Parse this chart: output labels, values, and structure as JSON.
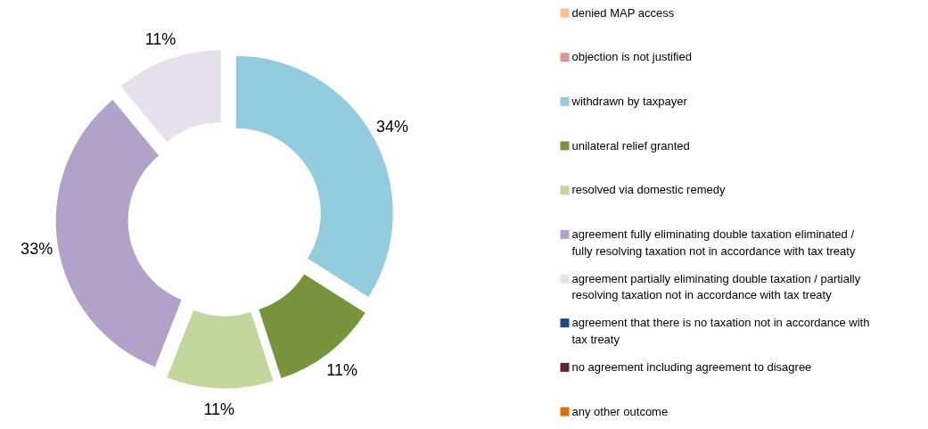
{
  "chart_data": {
    "type": "donut",
    "categories": [
      "denied MAP access",
      "objection is not justified",
      "withdrawn by taxpayer",
      "unilateral relief granted",
      "resolved via domestic remedy",
      "agreement fully eliminating double taxation eliminated / fully resolving taxation not in accordance with tax treaty",
      "agreement partially eliminating double taxation / partially resolving taxation not in accordance with tax treaty",
      "agreement that there is no taxation not in accordance with tax treaty",
      "no agreement including agreement to disagree",
      "any other outcome"
    ],
    "values": [
      0,
      0,
      34,
      11,
      11,
      33,
      11,
      0,
      0,
      0
    ],
    "colors": [
      "#fac090",
      "#d99694",
      "#93cddd",
      "#77933c",
      "#c3d69b",
      "#b3a2c7",
      "#e6e0ec",
      "#1f497d",
      "#632523",
      "#e46c0a"
    ],
    "value_labels": [
      null,
      null,
      "34%",
      "11%",
      "11%",
      "33%",
      "11%",
      null,
      null,
      null
    ],
    "legend": "right"
  }
}
